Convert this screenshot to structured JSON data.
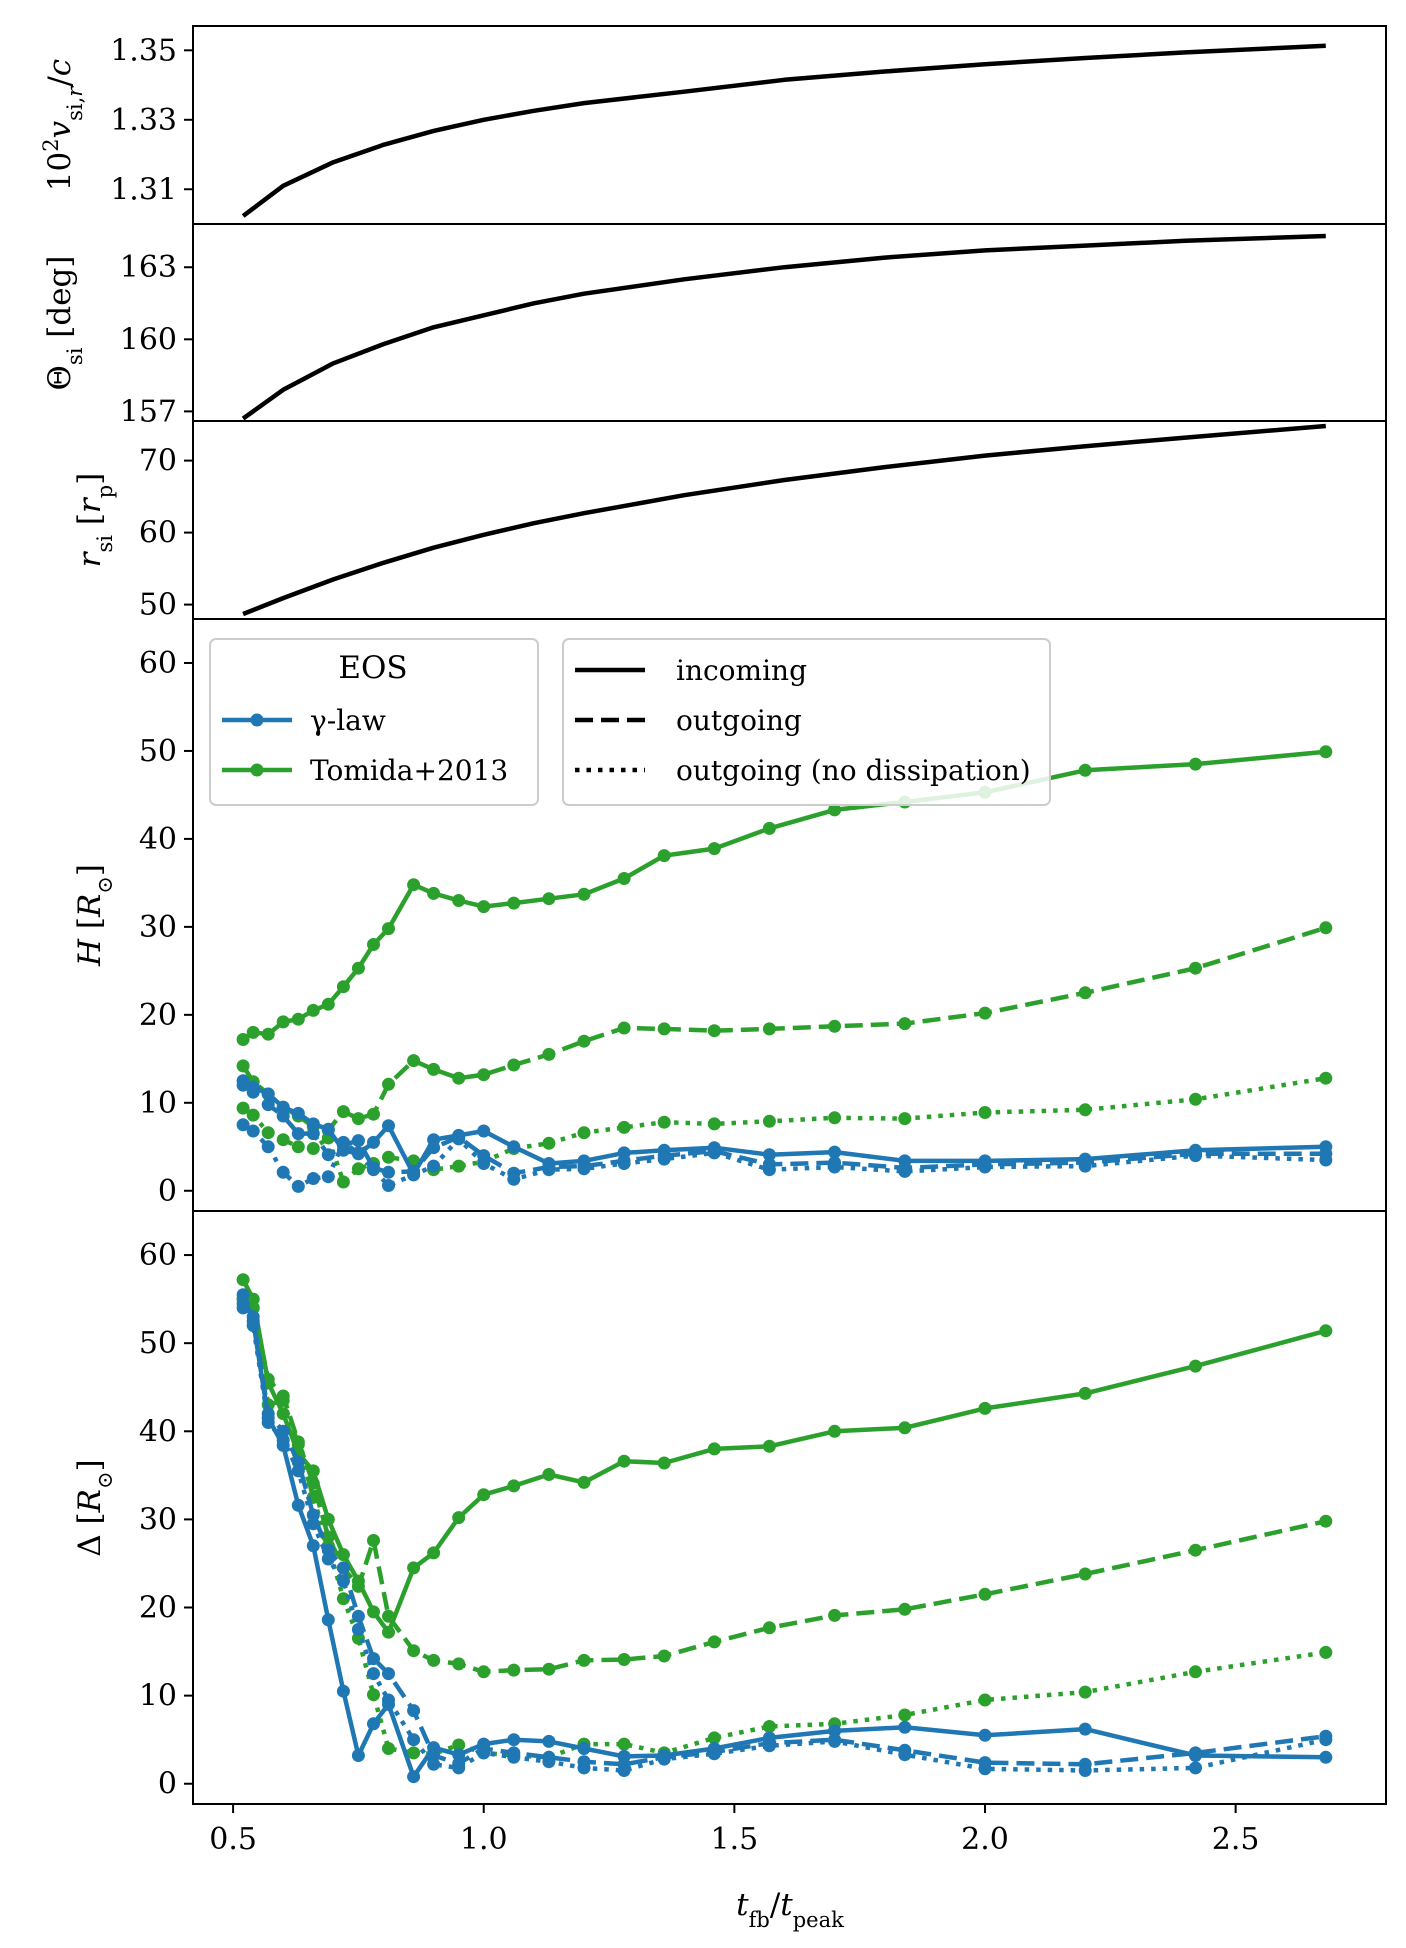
{
  "figure": {
    "xlabel": "t_fb / t_peak",
    "xlim": [
      0.42,
      2.8
    ],
    "xticks": [
      0.5,
      1.0,
      1.5,
      2.0,
      2.5
    ],
    "xtick_labels": [
      "0.5",
      "1.0",
      "1.5",
      "2.0",
      "2.5"
    ]
  },
  "colors": {
    "blue": "#1f77b4",
    "green": "#2ca02c",
    "black": "#000000"
  },
  "legend": {
    "eos_title": "EOS",
    "eos_entries": [
      "γ-law",
      "Tomida+2013"
    ],
    "style_entries": [
      "incoming",
      "outgoing",
      "outgoing (no dissipation)"
    ]
  },
  "chart_data": [
    {
      "type": "line",
      "panel": "vsi",
      "ylabel": "10²v_si,r/c",
      "ylim": [
        1.3,
        1.357
      ],
      "yticks": [
        1.31,
        1.33,
        1.35
      ],
      "ytick_labels": [
        "1.31",
        "1.33",
        "1.35"
      ],
      "series": [
        {
          "name": "v_si",
          "x": [
            0.52,
            0.6,
            0.7,
            0.8,
            0.9,
            1.0,
            1.1,
            1.2,
            1.4,
            1.6,
            1.8,
            2.0,
            2.2,
            2.4,
            2.68
          ],
          "y": [
            1.3023,
            1.311,
            1.3178,
            1.3228,
            1.3268,
            1.33,
            1.3326,
            1.3348,
            1.3381,
            1.3415,
            1.3439,
            1.346,
            1.3478,
            1.3494,
            1.3513
          ]
        }
      ]
    },
    {
      "type": "line",
      "panel": "theta",
      "ylabel": "Θ_si [deg]",
      "ylim": [
        156.6,
        164.8
      ],
      "yticks": [
        157,
        160,
        163
      ],
      "ytick_labels": [
        "157",
        "160",
        "163"
      ],
      "series": [
        {
          "name": "theta",
          "x": [
            0.52,
            0.6,
            0.7,
            0.8,
            0.9,
            1.0,
            1.1,
            1.2,
            1.4,
            1.6,
            1.8,
            2.0,
            2.2,
            2.4,
            2.68
          ],
          "y": [
            156.7,
            157.9,
            159.0,
            159.8,
            160.5,
            161.0,
            161.5,
            161.9,
            162.5,
            163.0,
            163.4,
            163.7,
            163.9,
            164.1,
            164.3
          ]
        }
      ]
    },
    {
      "type": "line",
      "panel": "rsi",
      "ylabel": "r_si [r_p]",
      "ylim": [
        48.0,
        75.5
      ],
      "yticks": [
        50,
        60,
        70
      ],
      "ytick_labels": [
        "50",
        "60",
        "70"
      ],
      "series": [
        {
          "name": "rsi",
          "x": [
            0.52,
            0.6,
            0.7,
            0.8,
            0.9,
            1.0,
            1.1,
            1.2,
            1.4,
            1.6,
            1.8,
            2.0,
            2.2,
            2.4,
            2.68
          ],
          "y": [
            48.7,
            50.9,
            53.5,
            55.8,
            57.9,
            59.7,
            61.3,
            62.7,
            65.2,
            67.3,
            69.1,
            70.7,
            72.0,
            73.2,
            74.8
          ]
        }
      ]
    },
    {
      "type": "line",
      "panel": "H",
      "ylabel": "H [R⊙]",
      "ylim": [
        -2.3,
        65.0
      ],
      "yticks": [
        0,
        10,
        20,
        30,
        40,
        50,
        60
      ],
      "ytick_labels": [
        "0",
        "10",
        "20",
        "30",
        "40",
        "50",
        "60"
      ],
      "series": [
        {
          "name": "Tomida+2013 incoming",
          "color": "green",
          "style": "solid",
          "x": [
            0.52,
            0.54,
            0.57,
            0.6,
            0.63,
            0.66,
            0.69,
            0.72,
            0.75,
            0.78,
            0.81,
            0.86,
            0.9,
            0.95,
            1.0,
            1.06,
            1.13,
            1.2,
            1.28,
            1.36,
            1.46,
            1.57,
            1.7,
            1.84,
            2.0,
            2.2,
            2.42,
            2.68
          ],
          "y": [
            17.2,
            18.0,
            17.8,
            19.2,
            19.5,
            20.5,
            21.2,
            23.2,
            25.3,
            28.0,
            29.8,
            34.8,
            33.8,
            33.0,
            32.3,
            32.7,
            33.2,
            33.7,
            35.5,
            38.1,
            38.9,
            41.2,
            43.3,
            44.2,
            45.3,
            47.8,
            48.5,
            49.9
          ]
        },
        {
          "name": "Tomida+2013 outgoing",
          "color": "green",
          "style": "dashed",
          "x": [
            0.52,
            0.54,
            0.57,
            0.6,
            0.63,
            0.66,
            0.69,
            0.72,
            0.75,
            0.78,
            0.81,
            0.86,
            0.9,
            0.95,
            1.0,
            1.06,
            1.13,
            1.2,
            1.28,
            1.36,
            1.46,
            1.57,
            1.7,
            1.84,
            2.0,
            2.2,
            2.42,
            2.68
          ],
          "y": [
            14.2,
            12.4,
            11.0,
            9.5,
            8.5,
            7.3,
            6.9,
            9.0,
            8.2,
            8.7,
            12.1,
            14.8,
            13.8,
            12.8,
            13.2,
            14.3,
            15.5,
            17.0,
            18.5,
            18.4,
            18.2,
            18.4,
            18.7,
            19.0,
            20.2,
            22.5,
            25.3,
            29.9
          ]
        },
        {
          "name": "Tomida+2013 outgoing (no dissipation)",
          "color": "green",
          "style": "dotted",
          "x": [
            0.52,
            0.54,
            0.57,
            0.6,
            0.63,
            0.66,
            0.69,
            0.72,
            0.75,
            0.78,
            0.81,
            0.86,
            0.9,
            0.95,
            1.0,
            1.06,
            1.13,
            1.2,
            1.28,
            1.36,
            1.46,
            1.57,
            1.7,
            1.84,
            2.0,
            2.2,
            2.42,
            2.68
          ],
          "y": [
            9.4,
            8.6,
            6.6,
            5.8,
            5.0,
            4.8,
            6.0,
            1.0,
            2.5,
            3.1,
            3.8,
            3.4,
            2.4,
            2.8,
            3.3,
            4.8,
            5.4,
            6.6,
            7.2,
            7.8,
            7.6,
            7.9,
            8.3,
            8.2,
            8.9,
            9.2,
            10.4,
            12.8
          ]
        },
        {
          "name": "γ-law incoming",
          "color": "blue",
          "style": "solid",
          "x": [
            0.52,
            0.54,
            0.57,
            0.6,
            0.63,
            0.66,
            0.69,
            0.72,
            0.75,
            0.78,
            0.81,
            0.86,
            0.9,
            0.95,
            1.0,
            1.06,
            1.13,
            1.2,
            1.28,
            1.36,
            1.46,
            1.57,
            1.7,
            1.84,
            2.0,
            2.2,
            2.42,
            2.68
          ],
          "y": [
            12.5,
            11.8,
            11.0,
            9.5,
            8.8,
            7.6,
            7.0,
            4.6,
            4.2,
            5.5,
            7.4,
            1.9,
            5.8,
            6.3,
            6.8,
            5.0,
            3.1,
            3.4,
            4.3,
            4.6,
            4.9,
            4.1,
            4.4,
            3.4,
            3.4,
            3.6,
            4.6,
            5.0
          ]
        },
        {
          "name": "γ-law outgoing",
          "color": "blue",
          "style": "dashed",
          "x": [
            0.52,
            0.54,
            0.57,
            0.6,
            0.63,
            0.66,
            0.69,
            0.72,
            0.75,
            0.78,
            0.81,
            0.86,
            0.9,
            0.95,
            1.0,
            1.06,
            1.13,
            1.2,
            1.28,
            1.36,
            1.46,
            1.57,
            1.7,
            1.84,
            2.0,
            2.2,
            2.42,
            2.68
          ],
          "y": [
            12.0,
            11.2,
            9.8,
            8.5,
            6.5,
            6.5,
            4.1,
            5.2,
            5.7,
            2.6,
            2.1,
            2.2,
            4.9,
            6.1,
            4.0,
            2.0,
            2.7,
            2.8,
            3.4,
            4.0,
            4.5,
            3.0,
            3.2,
            2.6,
            3.0,
            3.2,
            4.2,
            4.2
          ]
        },
        {
          "name": "γ-law outgoing (no dissipation)",
          "color": "blue",
          "style": "dotted",
          "x": [
            0.52,
            0.54,
            0.57,
            0.6,
            0.63,
            0.66,
            0.69,
            0.72,
            0.75,
            0.78,
            0.81,
            0.86,
            0.9,
            0.95,
            1.0,
            1.06,
            1.13,
            1.2,
            1.28,
            1.36,
            1.46,
            1.57,
            1.7,
            1.84,
            2.0,
            2.2,
            2.42,
            2.68
          ],
          "y": [
            7.5,
            6.8,
            5.0,
            2.1,
            0.5,
            1.4,
            1.6,
            5.5,
            4.3,
            2.4,
            0.6,
            1.8,
            2.8,
            5.9,
            3.1,
            1.3,
            2.4,
            2.5,
            3.1,
            3.6,
            4.3,
            2.4,
            2.7,
            2.2,
            2.7,
            2.8,
            4.0,
            3.5
          ]
        }
      ]
    },
    {
      "type": "line",
      "panel": "Delta",
      "ylabel": "Δ [R⊙]",
      "ylim": [
        -2.3,
        65.0
      ],
      "yticks": [
        0,
        10,
        20,
        30,
        40,
        50,
        60
      ],
      "ytick_labels": [
        "0",
        "10",
        "20",
        "30",
        "40",
        "50",
        "60"
      ],
      "series": [
        {
          "name": "Tomida+2013 incoming",
          "color": "green",
          "style": "solid",
          "x": [
            0.52,
            0.54,
            0.57,
            0.6,
            0.63,
            0.66,
            0.69,
            0.72,
            0.75,
            0.78,
            0.81,
            0.86,
            0.9,
            0.95,
            1.0,
            1.06,
            1.13,
            1.2,
            1.28,
            1.36,
            1.46,
            1.57,
            1.7,
            1.84,
            2.0,
            2.2,
            2.42,
            2.68
          ],
          "y": [
            57.2,
            55.0,
            45.5,
            42.0,
            37.5,
            35.5,
            30.0,
            26.0,
            23.0,
            19.5,
            17.2,
            24.5,
            26.2,
            30.2,
            32.8,
            33.8,
            35.1,
            34.2,
            36.6,
            36.4,
            38.0,
            38.3,
            40.0,
            40.4,
            42.6,
            44.3,
            47.4,
            51.4
          ]
        },
        {
          "name": "Tomida+2013 outgoing",
          "color": "green",
          "style": "dashed",
          "x": [
            0.52,
            0.54,
            0.57,
            0.6,
            0.63,
            0.66,
            0.69,
            0.72,
            0.75,
            0.78,
            0.81,
            0.86,
            0.9,
            0.95,
            1.0,
            1.06,
            1.13,
            1.2,
            1.28,
            1.36,
            1.46,
            1.57,
            1.7,
            1.84,
            2.0,
            2.2,
            2.42,
            2.68
          ],
          "y": [
            55.0,
            54.0,
            45.9,
            44.0,
            38.8,
            34.1,
            28.0,
            24.5,
            22.4,
            27.6,
            19.0,
            15.1,
            14.0,
            13.6,
            12.7,
            12.9,
            13.0,
            14.0,
            14.1,
            14.5,
            16.1,
            17.7,
            19.1,
            19.8,
            21.5,
            23.8,
            26.5,
            29.8
          ]
        },
        {
          "name": "Tomida+2013 outgoing (no dissipation)",
          "color": "green",
          "style": "dotted",
          "x": [
            0.52,
            0.54,
            0.57,
            0.6,
            0.63,
            0.66,
            0.69,
            0.72,
            0.75,
            0.78,
            0.81,
            0.86,
            0.9,
            0.95,
            1.0,
            1.06,
            1.13,
            1.2,
            1.28,
            1.36,
            1.46,
            1.57,
            1.7,
            1.84,
            2.0,
            2.2,
            2.42,
            2.68
          ],
          "y": [
            55.0,
            54.0,
            43.0,
            43.5,
            38.5,
            32.5,
            27.0,
            21.0,
            16.5,
            10.1,
            4.0,
            3.5,
            3.4,
            4.4,
            3.5,
            3.2,
            3.0,
            4.5,
            4.5,
            3.5,
            5.2,
            6.5,
            6.8,
            7.8,
            9.5,
            10.4,
            12.7,
            14.9
          ]
        },
        {
          "name": "γ-law incoming",
          "color": "blue",
          "style": "solid",
          "x": [
            0.52,
            0.54,
            0.57,
            0.6,
            0.63,
            0.66,
            0.69,
            0.72,
            0.75,
            0.78,
            0.81,
            0.86,
            0.9,
            0.95,
            1.0,
            1.06,
            1.13,
            1.2,
            1.28,
            1.36,
            1.46,
            1.57,
            1.7,
            1.84,
            2.0,
            2.2,
            2.42,
            2.68
          ],
          "y": [
            55.5,
            52.5,
            41.5,
            38.4,
            31.6,
            27.0,
            18.6,
            10.5,
            3.2,
            6.8,
            9.0,
            0.8,
            4.1,
            3.3,
            4.5,
            5.0,
            4.8,
            4.0,
            3.1,
            3.2,
            4.0,
            5.2,
            6.0,
            6.4,
            5.5,
            6.2,
            3.2,
            3.0
          ]
        },
        {
          "name": "γ-law outgoing",
          "color": "blue",
          "style": "dashed",
          "x": [
            0.52,
            0.54,
            0.57,
            0.6,
            0.63,
            0.66,
            0.69,
            0.72,
            0.75,
            0.78,
            0.81,
            0.86,
            0.9,
            0.95,
            1.0,
            1.06,
            1.13,
            1.2,
            1.28,
            1.36,
            1.46,
            1.57,
            1.7,
            1.84,
            2.0,
            2.2,
            2.42,
            2.68
          ],
          "y": [
            54.5,
            53.0,
            42.0,
            40.0,
            36.5,
            30.5,
            26.5,
            24.5,
            19.0,
            14.2,
            12.5,
            8.3,
            3.2,
            2.3,
            4.0,
            3.5,
            3.0,
            2.5,
            2.2,
            3.0,
            3.6,
            4.6,
            5.0,
            3.8,
            2.4,
            2.2,
            3.5,
            5.4
          ]
        },
        {
          "name": "γ-law outgoing (no dissipation)",
          "color": "blue",
          "style": "dotted",
          "x": [
            0.52,
            0.54,
            0.57,
            0.6,
            0.63,
            0.66,
            0.69,
            0.72,
            0.75,
            0.78,
            0.81,
            0.86,
            0.9,
            0.95,
            1.0,
            1.06,
            1.13,
            1.2,
            1.28,
            1.36,
            1.46,
            1.57,
            1.7,
            1.84,
            2.0,
            2.2,
            2.42,
            2.68
          ],
          "y": [
            54.0,
            52.0,
            41.0,
            39.0,
            35.5,
            29.5,
            25.5,
            23.0,
            17.5,
            12.5,
            9.5,
            5.0,
            2.2,
            1.8,
            3.5,
            3.0,
            2.5,
            1.8,
            1.5,
            2.8,
            3.4,
            4.3,
            4.8,
            3.3,
            1.7,
            1.5,
            1.8,
            5.0
          ]
        }
      ]
    }
  ]
}
